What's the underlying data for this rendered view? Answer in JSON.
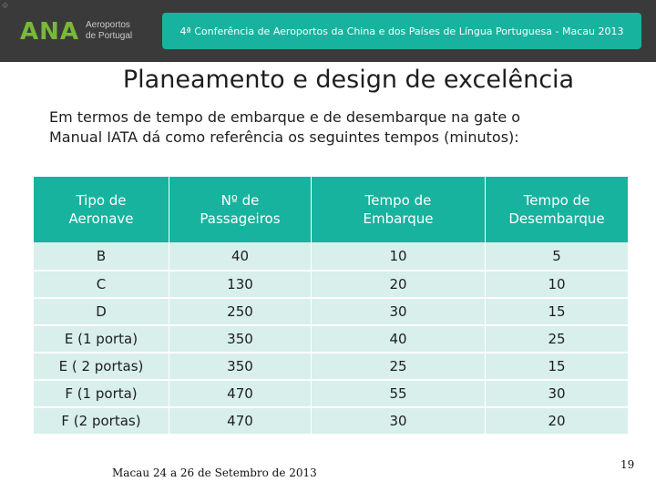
{
  "header": {
    "corner_mark": "⟐",
    "logo_mark": "ANA",
    "logo_line1": "Aeroportos",
    "logo_line2": "de Portugal",
    "banner_text": "4ª Conferência de Aeroportos da China e dos Países de Língua Portuguesa - Macau 2013"
  },
  "slide": {
    "title": "Planeamento e design de excelência",
    "intro_line1": "Em termos de tempo de embarque e de desembarque na gate o",
    "intro_line2": "Manual IATA dá como referência os seguintes tempos (minutos):"
  },
  "table": {
    "headers": [
      {
        "line1": "Tipo de",
        "line2": "Aeronave"
      },
      {
        "line1": "Nº de",
        "line2": "Passageiros"
      },
      {
        "line1": "Tempo de",
        "line2": "Embarque"
      },
      {
        "line1": "Tempo de",
        "line2": "Desembarque"
      }
    ],
    "rows": [
      [
        "B",
        "40",
        "10",
        "5"
      ],
      [
        "C",
        "130",
        "20",
        "10"
      ],
      [
        "D",
        "250",
        "30",
        "15"
      ],
      [
        "E (1 porta)",
        "350",
        "40",
        "25"
      ],
      [
        "E ( 2 portas)",
        "350",
        "25",
        "15"
      ],
      [
        "F (1 porta)",
        "470",
        "55",
        "30"
      ],
      [
        "F (2 portas)",
        "470",
        "30",
        "20"
      ]
    ]
  },
  "footer": {
    "left": "Macau 24 a 26 de Setembro de 2013",
    "page_number": "19"
  },
  "colors": {
    "accent": "#17b39f",
    "row_fill": "#d8efeb",
    "topbar": "#3a3a3a",
    "logo": "#7ab83a"
  }
}
